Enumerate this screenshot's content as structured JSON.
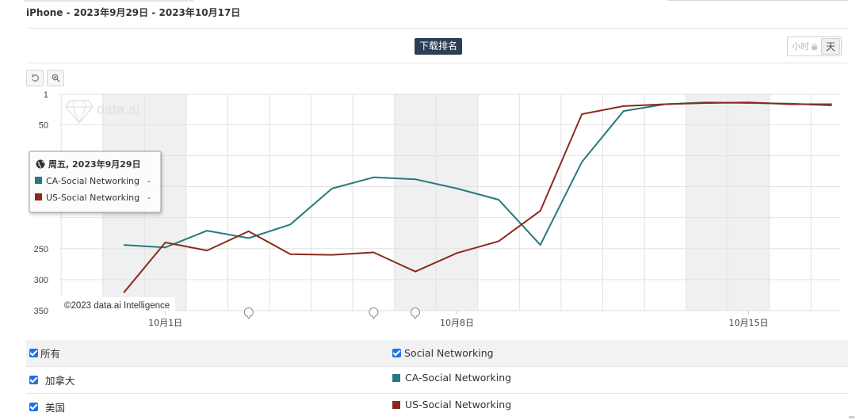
{
  "header": {
    "title": "iPhone - 2023年9月29日 - 2023年10月17日",
    "metric_button": "下载排名",
    "granularity_hour": "小时",
    "granularity_day": "天"
  },
  "tooltip": {
    "date": "周五, 2023年9月29日",
    "rows": [
      {
        "label": "CA-Social Networking",
        "value": "-"
      },
      {
        "label": "US-Social Networking",
        "value": "-"
      }
    ]
  },
  "watermark": "data.ai",
  "credit": "©2023 data.ai Intelligence",
  "colors": {
    "ca": "#267a7d",
    "us": "#8b2a1c",
    "weekend": "#f0f0f0",
    "accent": "#2b3f55"
  },
  "chart_data": {
    "type": "line",
    "title": "",
    "x": [
      "2023-09-29",
      "2023-09-30",
      "2023-10-01",
      "2023-10-02",
      "2023-10-03",
      "2023-10-04",
      "2023-10-05",
      "2023-10-06",
      "2023-10-07",
      "2023-10-08",
      "2023-10-09",
      "2023-10-10",
      "2023-10-11",
      "2023-10-12",
      "2023-10-13",
      "2023-10-14",
      "2023-10-15",
      "2023-10-16",
      "2023-10-17"
    ],
    "x_tick_labels": [
      {
        "x": "2023-10-01",
        "label": "10月1日"
      },
      {
        "x": "2023-10-08",
        "label": "10月8日"
      },
      {
        "x": "2023-10-15",
        "label": "10月15日"
      }
    ],
    "y_reversed": true,
    "ylim": [
      1,
      350
    ],
    "y_ticks": [
      1,
      50,
      100,
      150,
      200,
      250,
      300,
      350
    ],
    "y_tick_labels": [
      "1",
      "50",
      "",
      "",
      "",
      "250",
      "300",
      "350"
    ],
    "grid": true,
    "weekend_bands": [
      [
        "2023-09-30",
        "2023-10-01"
      ],
      [
        "2023-10-07",
        "2023-10-08"
      ],
      [
        "2023-10-14",
        "2023-10-15"
      ]
    ],
    "annotation_markers": [
      "2023-10-03",
      "2023-10-06",
      "2023-10-07"
    ],
    "series": [
      {
        "name": "CA-Social Networking",
        "values": [
          null,
          244,
          248,
          221,
          233,
          211,
          153,
          135,
          138,
          153,
          171,
          244,
          110,
          28,
          17,
          14,
          15,
          16,
          19
        ]
      },
      {
        "name": "US-Social Networking",
        "values": [
          null,
          321,
          240,
          253,
          222,
          259,
          260,
          256,
          287,
          257,
          238,
          189,
          33,
          20,
          17,
          15,
          14,
          17,
          17
        ]
      }
    ]
  },
  "legend": {
    "rows": [
      {
        "left_label": "所有",
        "right_label": "Social Networking",
        "right_type": "checkbox"
      },
      {
        "left_label": "加拿大",
        "right_label": "CA-Social Networking",
        "right_type": "swatch",
        "color": "#267a7d"
      },
      {
        "left_label": "美国",
        "right_label": "US-Social Networking",
        "right_type": "swatch",
        "color": "#8b2a1c"
      }
    ]
  }
}
